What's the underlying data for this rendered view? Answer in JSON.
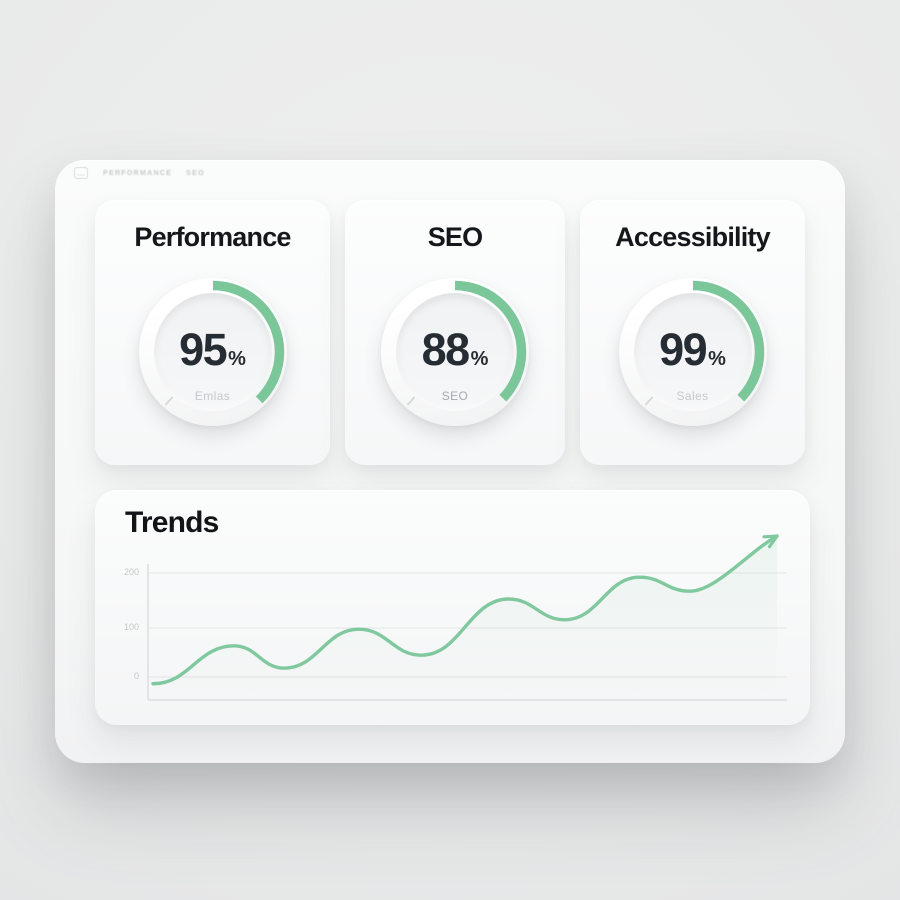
{
  "header": {
    "ghost_labels": [
      "PERFORMANCE",
      "SEO"
    ]
  },
  "panel": {
    "cards": [
      {
        "title": "Performance",
        "value": "95",
        "unit": "%",
        "sublabel": "Emlas",
        "arc_deg": 136
      },
      {
        "title": "SEO",
        "value": "88",
        "unit": "%",
        "sublabel": "SEO",
        "arc_deg": 134
      },
      {
        "title": "Accessibility",
        "value": "99",
        "unit": "%",
        "sublabel": "Sales",
        "arc_deg": 134
      }
    ]
  },
  "colors": {
    "accent_green": "#7cc79a",
    "chart_line_green": "#80c89e",
    "number_dark": "#262c33",
    "title_dark": "#15181b",
    "sublabel_gray": "#c5c8ca",
    "tick_gray": "#c4c7c9"
  },
  "chart_data": {
    "type": "line",
    "title": "Trends",
    "xlabel": "",
    "ylabel": "",
    "yticks": [
      "200",
      "100",
      "0"
    ],
    "ylim": [
      0,
      280
    ],
    "xlim": [
      0,
      100
    ],
    "grid": true,
    "legend": false,
    "annotations": [
      "line ends in an up-right arrowhead above the 200 gridline"
    ],
    "series": [
      {
        "name": "trend",
        "points": [
          [
            0,
            -13
          ],
          [
            13,
            60
          ],
          [
            21,
            17
          ],
          [
            33,
            92
          ],
          [
            43,
            42
          ],
          [
            57,
            150
          ],
          [
            66,
            110
          ],
          [
            78,
            192
          ],
          [
            86,
            165
          ],
          [
            100,
            271
          ]
        ]
      }
    ]
  }
}
